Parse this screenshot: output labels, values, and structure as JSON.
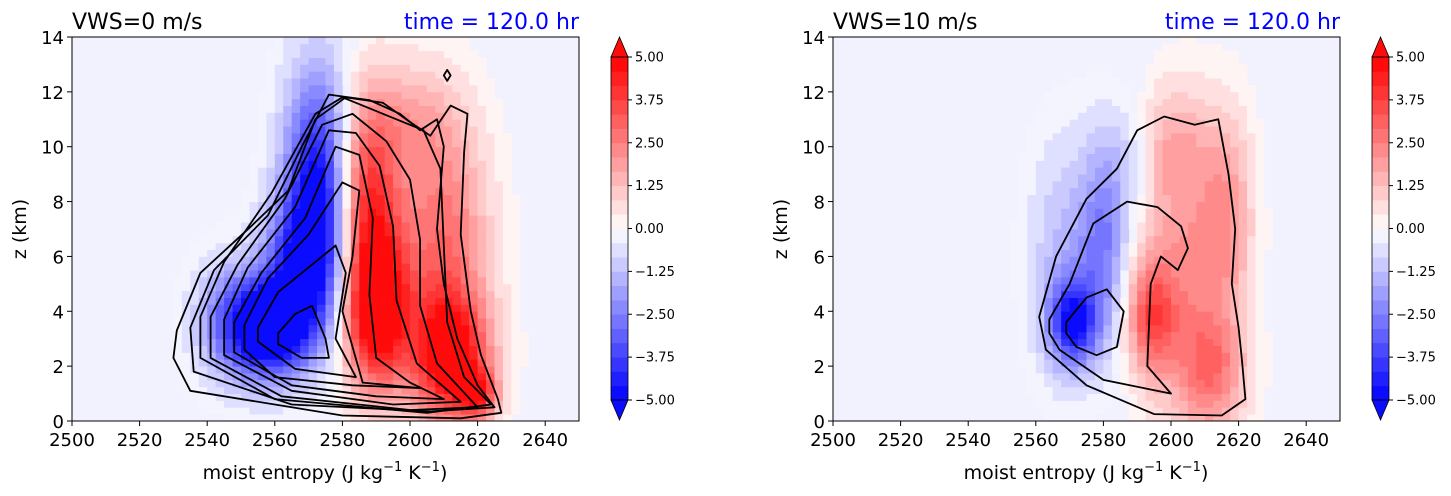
{
  "chart_data": [
    {
      "type": "heatmap",
      "title_left": "VWS=0 m/s",
      "title_right": "time = 120.0 hr",
      "title_right_color": "#0000ff",
      "xlabel": "moist entropy (J kg",
      "xlabel_unit_suffix": " K",
      "xlabel_exp": "−1",
      "xlabel_close": ")",
      "ylabel": "z (km)",
      "xlim": [
        2500,
        2650
      ],
      "ylim": [
        0,
        14
      ],
      "xticks": [
        "2500",
        "2520",
        "2540",
        "2560",
        "2580",
        "2600",
        "2620",
        "2640"
      ],
      "yticks": [
        "0",
        "2",
        "4",
        "6",
        "8",
        "10",
        "12",
        "14"
      ],
      "colorbar": {
        "range": [
          -5,
          5
        ],
        "levels": 24,
        "extend": "both",
        "cmap": [
          "#0000ff",
          "#ffffff",
          "#ff0000"
        ],
        "ticks": [
          "5.00",
          "3.75",
          "2.50",
          "1.25",
          "0.00",
          "−1.25",
          "−2.50",
          "−3.75",
          "−5.00"
        ]
      },
      "blobs": [
        {
          "sign": -1,
          "amp": 6.0,
          "x": 2557,
          "z": 3.4,
          "sx": 9,
          "sz": 1.3
        },
        {
          "sign": -1,
          "amp": 5.0,
          "x": 2573,
          "z": 8.5,
          "sx": 7,
          "sz": 3.0
        },
        {
          "sign": -1,
          "amp": 3.5,
          "x": 2568,
          "z": 5.6,
          "sx": 8,
          "sz": 1.8
        },
        {
          "sign": -1,
          "amp": 1.2,
          "x": 2545,
          "z": 3.8,
          "sx": 7,
          "sz": 1.5
        },
        {
          "sign": 1,
          "amp": 5.5,
          "x": 2590,
          "z": 4.0,
          "sx": 7,
          "sz": 2.0
        },
        {
          "sign": 1,
          "amp": 5.0,
          "x": 2612,
          "z": 2.3,
          "sx": 8,
          "sz": 1.6
        },
        {
          "sign": 1,
          "amp": 4.0,
          "x": 2587,
          "z": 8.2,
          "sx": 7,
          "sz": 2.6
        },
        {
          "sign": 1,
          "amp": 2.8,
          "x": 2610,
          "z": 6.5,
          "sx": 9,
          "sz": 3.0
        },
        {
          "sign": 1,
          "amp": 3.2,
          "x": 2620,
          "z": 1.0,
          "sx": 4,
          "sz": 0.6
        },
        {
          "sign": 1,
          "amp": 1.2,
          "x": 2600,
          "z": 11.0,
          "sx": 10,
          "sz": 1.5
        }
      ],
      "contours": [
        [
          [
            2561,
            3.2
          ],
          [
            2566,
            3.9
          ],
          [
            2571,
            4.2
          ],
          [
            2575,
            3.0
          ],
          [
            2576,
            2.3
          ],
          [
            2568,
            2.3
          ],
          [
            2561,
            2.8
          ]
        ],
        [
          [
            2555,
            3.4
          ],
          [
            2561,
            4.7
          ],
          [
            2570,
            5.6
          ],
          [
            2578,
            6.4
          ],
          [
            2581,
            5.4
          ],
          [
            2578,
            3.0
          ],
          [
            2584,
            1.6
          ],
          [
            2566,
            1.9
          ],
          [
            2555,
            2.9
          ]
        ],
        [
          [
            2551,
            3.5
          ],
          [
            2558,
            5.2
          ],
          [
            2570,
            6.8
          ],
          [
            2580,
            8.7
          ],
          [
            2585,
            8.4
          ],
          [
            2583,
            6.0
          ],
          [
            2580,
            4.0
          ],
          [
            2586,
            1.4
          ],
          [
            2603,
            1.2
          ],
          [
            2583,
            1.3
          ],
          [
            2560,
            1.6
          ],
          [
            2551,
            2.6
          ]
        ],
        [
          [
            2548,
            3.6
          ],
          [
            2556,
            5.4
          ],
          [
            2569,
            7.4
          ],
          [
            2578,
            10.0
          ],
          [
            2585,
            9.7
          ],
          [
            2589,
            7.4
          ],
          [
            2588,
            4.6
          ],
          [
            2590,
            2.3
          ],
          [
            2600,
            1.4
          ],
          [
            2610,
            0.8
          ],
          [
            2590,
            0.9
          ],
          [
            2565,
            1.3
          ],
          [
            2548,
            2.5
          ]
        ],
        [
          [
            2545,
            3.7
          ],
          [
            2552,
            5.6
          ],
          [
            2566,
            7.8
          ],
          [
            2576,
            10.6
          ],
          [
            2584,
            10.5
          ],
          [
            2591,
            9.3
          ],
          [
            2595,
            7.1
          ],
          [
            2596,
            4.4
          ],
          [
            2602,
            2.1
          ],
          [
            2615,
            0.7
          ],
          [
            2595,
            0.6
          ],
          [
            2565,
            1.1
          ],
          [
            2545,
            2.4
          ]
        ],
        [
          [
            2541,
            3.8
          ],
          [
            2549,
            5.7
          ],
          [
            2563,
            8.1
          ],
          [
            2574,
            10.8
          ],
          [
            2583,
            11.2
          ],
          [
            2593,
            10.2
          ],
          [
            2600,
            8.8
          ],
          [
            2603,
            6.6
          ],
          [
            2603,
            4.2
          ],
          [
            2608,
            2.1
          ],
          [
            2620,
            0.5
          ],
          [
            2600,
            0.4
          ],
          [
            2562,
            0.9
          ],
          [
            2541,
            2.3
          ]
        ],
        [
          [
            2538,
            3.8
          ],
          [
            2545,
            5.8
          ],
          [
            2559,
            8.3
          ],
          [
            2572,
            11.2
          ],
          [
            2580,
            11.8
          ],
          [
            2590,
            11.3
          ],
          [
            2604,
            10.6
          ],
          [
            2609,
            9.2
          ],
          [
            2610,
            6.4
          ],
          [
            2611,
            3.6
          ],
          [
            2616,
            1.6
          ],
          [
            2624,
            0.6
          ],
          [
            2605,
            0.3
          ],
          [
            2560,
            0.8
          ],
          [
            2538,
            2.3
          ]
        ],
        [
          [
            2535,
            3.4
          ],
          [
            2542,
            5.5
          ],
          [
            2558,
            7.5
          ],
          [
            2568,
            10.0
          ],
          [
            2576,
            11.9
          ],
          [
            2588,
            11.7
          ],
          [
            2597,
            11.2
          ],
          [
            2603,
            10.6
          ],
          [
            2608,
            11.0
          ],
          [
            2610,
            10.0
          ],
          [
            2608,
            7.0
          ],
          [
            2610,
            5.0
          ],
          [
            2614,
            3.0
          ],
          [
            2620,
            1.3
          ],
          [
            2625,
            0.5
          ],
          [
            2606,
            0.35
          ],
          [
            2565,
            0.6
          ],
          [
            2536,
            1.8
          ]
        ],
        [
          [
            2531,
            3.3
          ],
          [
            2538,
            5.4
          ],
          [
            2553,
            7.1
          ],
          [
            2564,
            8.4
          ],
          [
            2572,
            11.0
          ],
          [
            2581,
            11.8
          ],
          [
            2592,
            11.6
          ],
          [
            2600,
            10.9
          ],
          [
            2606,
            10.4
          ],
          [
            2612,
            11.5
          ],
          [
            2617,
            11.2
          ],
          [
            2616,
            9.8
          ],
          [
            2615,
            6.8
          ],
          [
            2618,
            4.0
          ],
          [
            2621,
            2.4
          ],
          [
            2626,
            0.8
          ],
          [
            2627,
            0.3
          ],
          [
            2615,
            0.1
          ],
          [
            2580,
            0.2
          ],
          [
            2535,
            1.1
          ],
          [
            2530,
            2.3
          ]
        ],
        [
          [
            2610,
            12.6
          ],
          [
            2611,
            12.8
          ],
          [
            2612,
            12.6
          ],
          [
            2611,
            12.4
          ]
        ]
      ]
    },
    {
      "type": "heatmap",
      "title_left": "VWS=10 m/s",
      "title_right": "time = 120.0 hr",
      "title_right_color": "#0000ff",
      "xlabel": "moist entropy (J kg",
      "xlabel_unit_suffix": " K",
      "xlabel_exp": "−1",
      "xlabel_close": ")",
      "ylabel": "z (km)",
      "xlim": [
        2500,
        2650
      ],
      "ylim": [
        0,
        14
      ],
      "xticks": [
        "2500",
        "2520",
        "2540",
        "2560",
        "2580",
        "2600",
        "2620",
        "2640"
      ],
      "yticks": [
        "0",
        "2",
        "4",
        "6",
        "8",
        "10",
        "12",
        "14"
      ],
      "colorbar": {
        "range": [
          -5,
          5
        ],
        "levels": 24,
        "extend": "both",
        "cmap": [
          "#0000ff",
          "#ffffff",
          "#ff0000"
        ],
        "ticks": [
          "5.00",
          "3.75",
          "2.50",
          "1.25",
          "0.00",
          "−1.25",
          "−2.50",
          "−3.75",
          "−5.00"
        ]
      },
      "blobs": [
        {
          "sign": -1,
          "amp": 4.2,
          "x": 2571,
          "z": 3.6,
          "sx": 5,
          "sz": 1.1
        },
        {
          "sign": -1,
          "amp": 2.4,
          "x": 2580,
          "z": 6.5,
          "sx": 5,
          "sz": 2.5
        },
        {
          "sign": -1,
          "amp": 1.3,
          "x": 2568,
          "z": 6.0,
          "sx": 7,
          "sz": 3.0
        },
        {
          "sign": -1,
          "amp": 0.9,
          "x": 2588,
          "z": 9.6,
          "sx": 6,
          "sz": 1.5
        },
        {
          "sign": 1,
          "amp": 3.0,
          "x": 2594,
          "z": 3.8,
          "sx": 5,
          "sz": 1.5
        },
        {
          "sign": 1,
          "amp": 2.0,
          "x": 2605,
          "z": 5.5,
          "sx": 9,
          "sz": 3.5
        },
        {
          "sign": 1,
          "amp": 2.2,
          "x": 2612,
          "z": 1.8,
          "sx": 7,
          "sz": 1.5
        },
        {
          "sign": 1,
          "amp": 1.6,
          "x": 2617,
          "z": 7.5,
          "sx": 5,
          "sz": 2.5
        },
        {
          "sign": 1,
          "amp": 1.2,
          "x": 2600,
          "z": 10.0,
          "sx": 8,
          "sz": 1.5
        }
      ],
      "contours": [
        [
          [
            2569,
            3.6
          ],
          [
            2575,
            4.5
          ],
          [
            2581,
            4.8
          ],
          [
            2586,
            4.0
          ],
          [
            2584,
            2.7
          ],
          [
            2578,
            2.4
          ],
          [
            2572,
            2.7
          ],
          [
            2569,
            3.2
          ]
        ],
        [
          [
            2564,
            3.7
          ],
          [
            2570,
            5.0
          ],
          [
            2577,
            7.2
          ],
          [
            2587,
            8.0
          ],
          [
            2596,
            7.8
          ],
          [
            2603,
            7.1
          ],
          [
            2605,
            6.3
          ],
          [
            2602,
            5.5
          ],
          [
            2597,
            6.0
          ],
          [
            2594,
            5.0
          ],
          [
            2593,
            2.0
          ],
          [
            2600,
            1.0
          ],
          [
            2580,
            1.5
          ],
          [
            2567,
            2.6
          ],
          [
            2564,
            3.2
          ]
        ],
        [
          [
            2561,
            3.8
          ],
          [
            2566,
            6.0
          ],
          [
            2575,
            8.1
          ],
          [
            2584,
            9.2
          ],
          [
            2590,
            10.6
          ],
          [
            2598,
            11.1
          ],
          [
            2607,
            10.8
          ],
          [
            2614,
            11.0
          ],
          [
            2617,
            9.0
          ],
          [
            2619,
            7.0
          ],
          [
            2618,
            5.0
          ],
          [
            2620,
            3.4
          ],
          [
            2621,
            2.2
          ],
          [
            2622,
            0.8
          ],
          [
            2615,
            0.2
          ],
          [
            2595,
            0.25
          ],
          [
            2575,
            1.3
          ],
          [
            2563,
            2.6
          ]
        ]
      ]
    }
  ]
}
